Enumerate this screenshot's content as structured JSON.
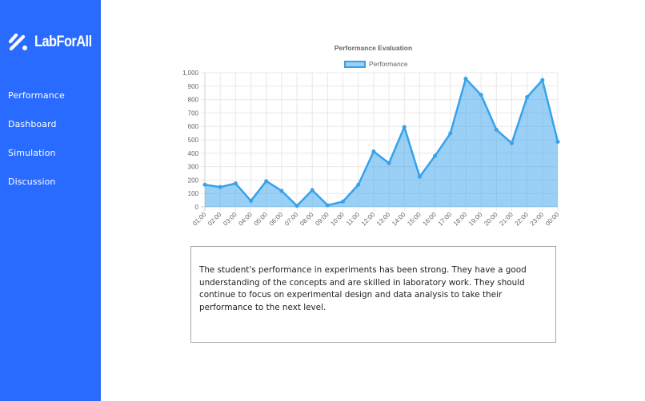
{
  "brand": {
    "name": "LabForAll",
    "icon": "slash-dots-logo-icon",
    "sidebar_color": "#2a6bff"
  },
  "sidebar": {
    "items": [
      {
        "label": "Performance"
      },
      {
        "label": "Dashboard"
      },
      {
        "label": "Simulation"
      },
      {
        "label": "Discussion"
      }
    ]
  },
  "chart_data": {
    "type": "area",
    "title": "Performance Evaluation",
    "legend": [
      "Performance"
    ],
    "legend_position": "top",
    "xlabel": "",
    "ylabel": "",
    "x": [
      "01:00",
      "02:00",
      "03:00",
      "04:00",
      "05:00",
      "06:00",
      "07:00",
      "08:00",
      "09:00",
      "10:00",
      "11:00",
      "12:00",
      "13:00",
      "14:00",
      "15:00",
      "16:00",
      "17:00",
      "18:00",
      "19:00",
      "20:00",
      "21:00",
      "22:00",
      "23:00",
      "00:00"
    ],
    "series": [
      {
        "name": "Performance",
        "values": [
          165,
          148,
          175,
          45,
          192,
          120,
          8,
          125,
          12,
          40,
          165,
          413,
          326,
          595,
          225,
          380,
          548,
          955,
          835,
          575,
          475,
          818,
          945,
          485
        ],
        "line_color": "#36a2eb",
        "fill_color": "rgba(54,162,235,0.5)"
      }
    ],
    "ylim": [
      0,
      1000
    ],
    "yticks": [
      "0",
      "100",
      "200",
      "300",
      "400",
      "500",
      "600",
      "700",
      "800",
      "900",
      "1,000"
    ],
    "grid": true
  },
  "summary": {
    "text": "The student's performance in experiments has been strong. They have a good understanding of the concepts and are skilled in laboratory work. They should continue to focus on experimental design and data analysis to take their performance to the next level."
  }
}
